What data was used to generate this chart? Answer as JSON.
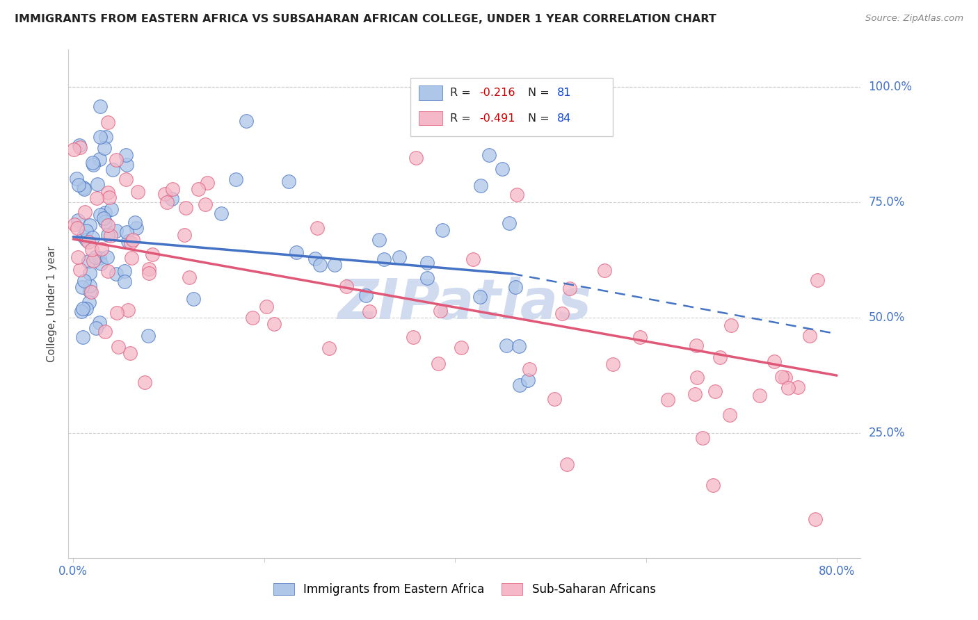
{
  "title": "IMMIGRANTS FROM EASTERN AFRICA VS SUBSAHARAN AFRICAN COLLEGE, UNDER 1 YEAR CORRELATION CHART",
  "source": "Source: ZipAtlas.com",
  "ylabel": "College, Under 1 year",
  "series1_color": "#aec6e8",
  "series2_color": "#f4b8c8",
  "trend1_color": "#4472c4",
  "trend2_color": "#e05878",
  "watermark": "ZIPatlas",
  "watermark_color": "#ccd8ee",
  "background_color": "#ffffff",
  "grid_color": "#cccccc",
  "tick_color": "#4472c4",
  "xlim": [
    0.0,
    0.8
  ],
  "ylim": [
    0.0,
    1.0
  ],
  "yticks": [
    0.0,
    0.25,
    0.5,
    0.75,
    1.0
  ],
  "ytick_labels_right": [
    "",
    "25.0%",
    "50.0%",
    "75.0%",
    "100.0%"
  ],
  "xtick_left_label": "0.0%",
  "xtick_right_label": "80.0%",
  "legend_r1": "-0.216",
  "legend_n1": "81",
  "legend_r2": "-0.491",
  "legend_n2": "84",
  "legend_label1": "Immigrants from Eastern Africa",
  "legend_label2": "Sub-Saharan Africans",
  "trend1_x_start": 0.0,
  "trend1_x_solid_end": 0.46,
  "trend1_x_dash_end": 0.8,
  "trend1_y_start": 0.675,
  "trend1_y_solid_end": 0.595,
  "trend1_y_dash_end": 0.465,
  "trend2_x_start": 0.0,
  "trend2_x_end": 0.8,
  "trend2_y_start": 0.67,
  "trend2_y_end": 0.375
}
